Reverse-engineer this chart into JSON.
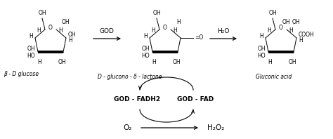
{
  "bg_color": "#ffffff",
  "fig_width": 4.74,
  "fig_height": 1.98,
  "dpi": 100,
  "label1": "β - D glucose",
  "label2": "D - glucono - δ - lactone",
  "label3": "Gluconic acid",
  "arrow1_label": "GOD",
  "arrow2_label": "H₂O",
  "god_fadh2": "GOD - FADH2",
  "god_fad": "GOD - FAD",
  "o2_label": "O₂",
  "h2o2_label": "H₂O₂"
}
